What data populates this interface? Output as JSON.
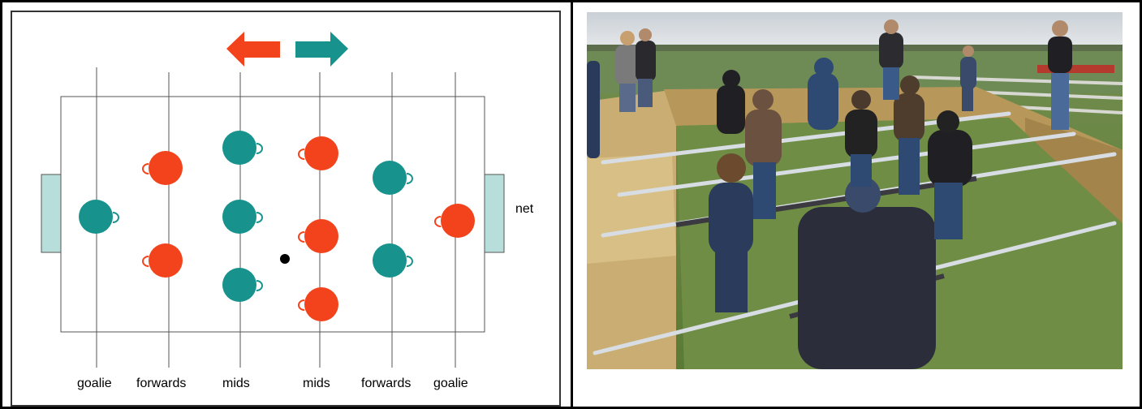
{
  "diagram": {
    "net_label": "net",
    "column_labels": [
      "goalie",
      "forwards",
      "mids",
      "mids",
      "forwards",
      "goalie"
    ],
    "colors": {
      "teal": "#17928c",
      "orange": "#f2431c",
      "goal_fill": "#b7dedb",
      "line": "#555555"
    },
    "arrows": [
      "left-arrow-orange",
      "right-arrow-teal"
    ]
  },
  "photo": {
    "description_icon": "human-foosball-field-photo"
  }
}
